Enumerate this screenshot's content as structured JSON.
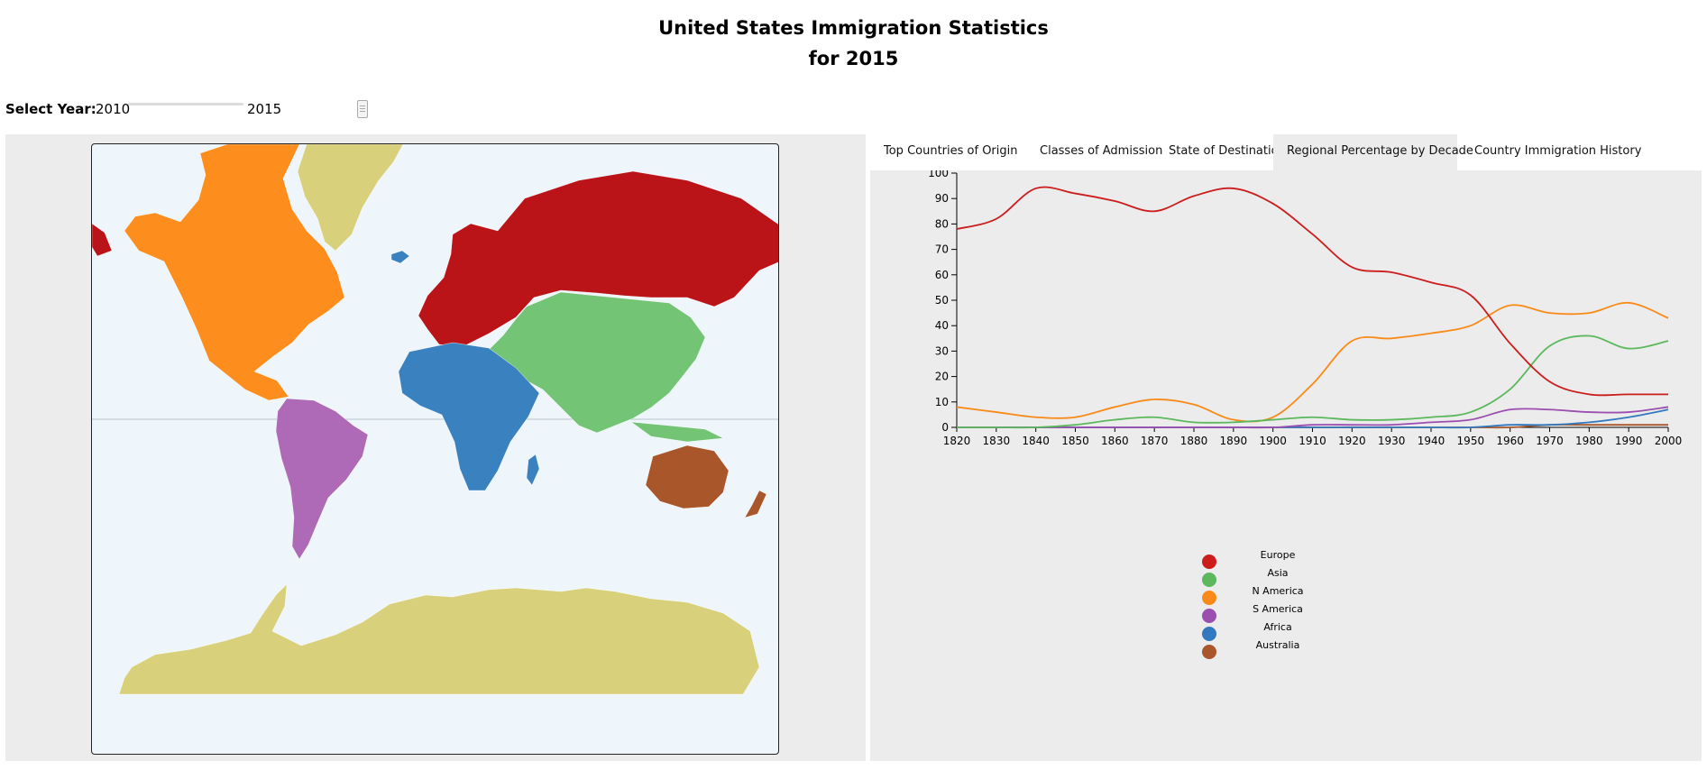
{
  "header": {
    "title_line1": "United States Immigration Statistics",
    "title_line2": "for 2015"
  },
  "year_selector": {
    "label": "Select Year:",
    "min": "2010",
    "max": "2015",
    "value": 2015
  },
  "tabs": [
    {
      "label": "Top Countries of Origin",
      "active": false
    },
    {
      "label": "Classes of Admission",
      "active": false
    },
    {
      "label": "State of Destination",
      "active": false
    },
    {
      "label": "Regional Percentage by Decade",
      "active": true
    },
    {
      "label": "Country Immigration History",
      "active": false
    }
  ],
  "map": {
    "region_colors": {
      "europe": "#bb1418",
      "asia": "#74c476",
      "n_america": "#fd8d1c",
      "s_america": "#ae6ab6",
      "africa": "#3a81c0",
      "australia": "#a8562a",
      "antarctica": "#d9d07c",
      "greenland": "#d9d07c",
      "ocean": "#eef6fc"
    }
  },
  "chart_data": {
    "type": "line",
    "title": "",
    "xlabel": "",
    "ylabel": "",
    "x": [
      1820,
      1830,
      1840,
      1850,
      1860,
      1870,
      1880,
      1890,
      1900,
      1910,
      1920,
      1930,
      1940,
      1950,
      1960,
      1970,
      1980,
      1990,
      2000
    ],
    "xticks": [
      "1820",
      "1830",
      "1840",
      "1850",
      "1860",
      "1870",
      "1880",
      "1890",
      "1900",
      "1910",
      "1920",
      "1930",
      "1940",
      "1950",
      "1960",
      "1970",
      "1980",
      "1990",
      "2000"
    ],
    "yticks": [
      "0",
      "10",
      "20",
      "30",
      "40",
      "50",
      "60",
      "70",
      "80",
      "90",
      "100"
    ],
    "ylim": [
      0,
      100
    ],
    "series": [
      {
        "name": "Europe",
        "color": "#cc1c1c",
        "values": [
          78,
          82,
          94,
          92,
          89,
          85,
          91,
          94,
          88,
          76,
          63,
          61,
          57,
          52,
          33,
          18,
          13,
          13,
          13
        ]
      },
      {
        "name": "Asia",
        "color": "#5cb85c",
        "values": [
          0,
          0,
          0,
          1,
          3,
          4,
          2,
          2,
          3,
          4,
          3,
          3,
          4,
          6,
          15,
          32,
          36,
          31,
          34
        ]
      },
      {
        "name": "N America",
        "color": "#f98a17",
        "values": [
          8,
          6,
          4,
          4,
          8,
          11,
          9,
          3,
          4,
          17,
          34,
          35,
          37,
          40,
          48,
          45,
          45,
          49,
          43
        ]
      },
      {
        "name": "S America",
        "color": "#9b4fb0",
        "values": [
          0,
          0,
          0,
          0,
          0,
          0,
          0,
          0,
          0,
          1,
          1,
          1,
          2,
          3,
          7,
          7,
          6,
          6,
          8
        ]
      },
      {
        "name": "Africa",
        "color": "#3279c0",
        "values": [
          0,
          0,
          0,
          0,
          0,
          0,
          0,
          0,
          0,
          0,
          0,
          0,
          0,
          0,
          1,
          1,
          2,
          4,
          7
        ]
      },
      {
        "name": "Australia",
        "color": "#a8562a",
        "values": [
          0,
          0,
          0,
          0,
          0,
          0,
          0,
          0,
          0,
          0,
          0,
          0,
          0,
          0,
          0,
          1,
          1,
          1,
          1
        ]
      }
    ],
    "legend": {
      "position": "bottom-center",
      "entries": [
        "Europe",
        "Asia",
        "N America",
        "S America",
        "Africa",
        "Australia"
      ]
    }
  }
}
